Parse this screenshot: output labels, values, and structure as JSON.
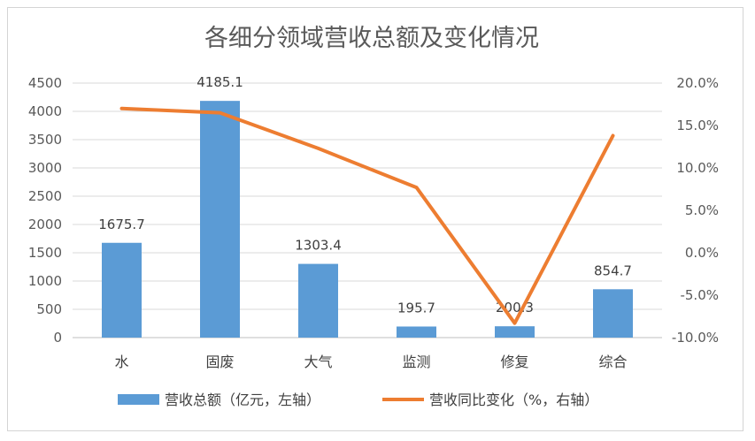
{
  "chart_data": {
    "type": "bar+line",
    "title": "各细分领域营收总额及变化情况",
    "categories": [
      "水",
      "固废",
      "大气",
      "监测",
      "修复",
      "综合"
    ],
    "series": [
      {
        "name": "营收总额（亿元，左轴）",
        "type": "bar",
        "axis": "left",
        "color": "#5b9bd5",
        "values": [
          1675.7,
          4185.1,
          1303.4,
          195.7,
          200.3,
          854.7
        ],
        "labels": [
          "1675.7",
          "4185.1",
          "1303.4",
          "195.7",
          "200.3",
          "854.7"
        ]
      },
      {
        "name": "营收同比变化（%，右轴）",
        "type": "line",
        "axis": "right",
        "color": "#ed7d31",
        "values": [
          17.0,
          16.5,
          12.3,
          7.7,
          -8.3,
          13.8
        ]
      }
    ],
    "left_axis": {
      "ylim": [
        0,
        4500
      ],
      "ticks": [
        0,
        500,
        1000,
        1500,
        2000,
        2500,
        3000,
        3500,
        4000,
        4500
      ],
      "tick_labels": [
        "0",
        "500",
        "1000",
        "1500",
        "2000",
        "2500",
        "3000",
        "3500",
        "4000",
        "4500"
      ]
    },
    "right_axis": {
      "ylim": [
        -10,
        20
      ],
      "ticks": [
        -10,
        -5,
        0,
        5,
        10,
        15,
        20
      ],
      "tick_labels": [
        "-10.0%",
        "-5.0%",
        "0.0%",
        "5.0%",
        "10.0%",
        "15.0%",
        "20.0%"
      ]
    },
    "grid": true,
    "legend": "bottom"
  }
}
